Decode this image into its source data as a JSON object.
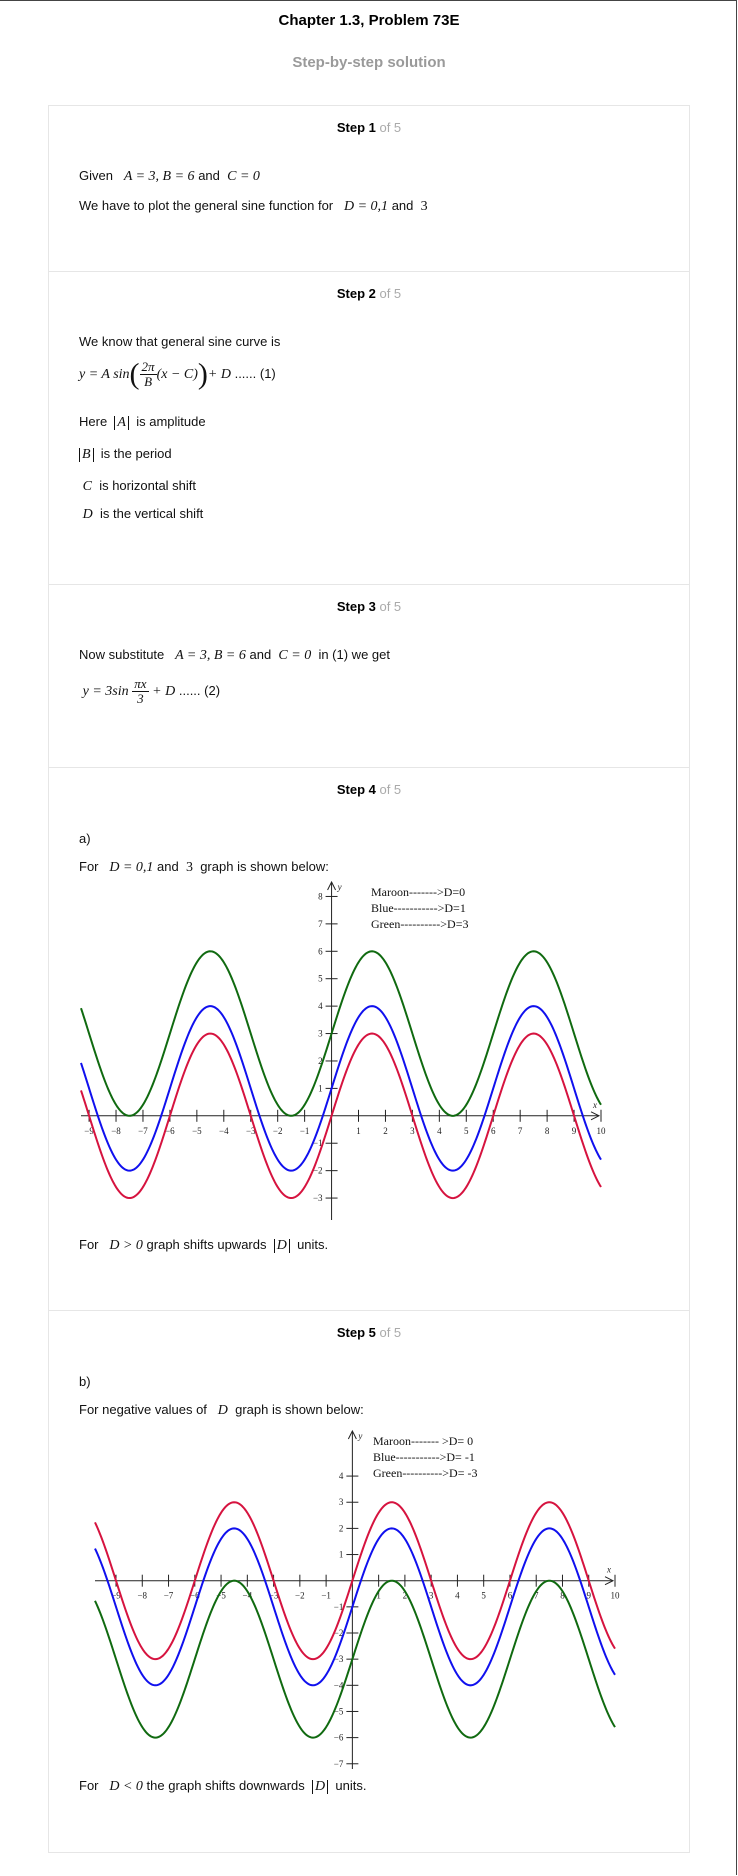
{
  "header": {
    "title": "Chapter 1.3, Problem 73E",
    "subtitle": "Step-by-step solution"
  },
  "steps": [
    {
      "label": "Step 1",
      "of": " of 5",
      "given_text": "Given",
      "given_math_1": "A = 3, B = 6",
      "and": "and",
      "given_math_2": "C = 0",
      "plot_text": "We have to plot the general sine function for",
      "d_values": "D = 0,1",
      "d_last": "3"
    },
    {
      "label": "Step 2",
      "of": " of 5",
      "intro": "We know that general sine curve is",
      "formula_lhs": "y = A sin",
      "formula_num": "2π",
      "formula_den": "B",
      "formula_inner": "(x − C)",
      "formula_tail": "+ D",
      "formula_ref": "...... (1)",
      "here": "Here",
      "amp_var": "A",
      "amp_text": "is amplitude",
      "period_var": "B",
      "period_text": "is the period",
      "hshift_var": "C",
      "hshift_text": "is horizontal shift",
      "vshift_var": "D",
      "vshift_text": "is the vertical shift"
    },
    {
      "label": "Step 3",
      "of": " of 5",
      "subst_text": "Now substitute",
      "subst_math_1": "A = 3, B = 6",
      "and": "and",
      "subst_math_2": "C = 0",
      "subst_tail": "in (1) we get",
      "eq_lhs": "y = 3sin",
      "eq_num": "πx",
      "eq_den": "3",
      "eq_tail": "+ D",
      "eq_ref": "...... (2)"
    },
    {
      "label": "Step 4",
      "of": " of 5",
      "part": "a)",
      "for_text": "For",
      "d_values": "D = 0,1",
      "and": "and",
      "d_last": "3",
      "graph_text": "graph is shown below:",
      "footer_for": "For",
      "footer_cond": "D > 0",
      "footer_text": "graph shifts upwards",
      "footer_var": "D",
      "footer_units": "units."
    },
    {
      "label": "Step 5",
      "of": " of 5",
      "part": "b)",
      "intro": "For negative values of",
      "var": "D",
      "graph_text": "graph is shown below:",
      "footer_for": "For",
      "footer_cond": "D < 0",
      "footer_text": "the graph shifts downwards",
      "footer_var": "D",
      "footer_units": "units."
    }
  ],
  "chart_data": [
    {
      "type": "line",
      "xlim": [
        -9.3,
        10
      ],
      "ylim": [
        -3.8,
        8.6
      ],
      "x_ticks": [
        -9,
        -8,
        -7,
        -6,
        -5,
        -4,
        -3,
        -2,
        -1,
        1,
        2,
        3,
        4,
        5,
        6,
        7,
        8,
        9,
        10
      ],
      "y_ticks": [
        -3,
        -2,
        -1,
        1,
        2,
        3,
        4,
        5,
        6,
        7,
        8
      ],
      "xlabel": "x",
      "ylabel": "y",
      "legend": [
        "Maroon------->D=0",
        "Blue----------->D=1",
        "Green---------->D=3"
      ],
      "series": [
        {
          "function": "3sin(πx/3)+0",
          "offset": 0,
          "color": "#d6133f"
        },
        {
          "function": "3sin(πx/3)+1",
          "offset": 1,
          "color": "#1010ee"
        },
        {
          "function": "3sin(πx/3)+3",
          "offset": 3,
          "color": "#106a10"
        }
      ]
    },
    {
      "type": "line",
      "xlim": [
        -9.8,
        10
      ],
      "ylim": [
        -7.2,
        5.8
      ],
      "x_ticks": [
        -9,
        -8,
        -7,
        -6,
        -5,
        -4,
        -3,
        -2,
        -1,
        1,
        2,
        3,
        4,
        5,
        6,
        7,
        8,
        9,
        10
      ],
      "y_ticks": [
        -7,
        -6,
        -5,
        -4,
        -3,
        -2,
        -1,
        1,
        2,
        3,
        4
      ],
      "xlabel": "x",
      "ylabel": "y",
      "legend": [
        "Maroon------- >D=  0",
        "Blue----------->D= -1",
        "Green---------->D= -3"
      ],
      "series": [
        {
          "function": "3sin(πx/3)+0",
          "offset": 0,
          "color": "#d6133f"
        },
        {
          "function": "3sin(πx/3)-1",
          "offset": -1,
          "color": "#1010ee"
        },
        {
          "function": "3sin(πx/3)-3",
          "offset": -3,
          "color": "#106a10"
        }
      ]
    }
  ]
}
